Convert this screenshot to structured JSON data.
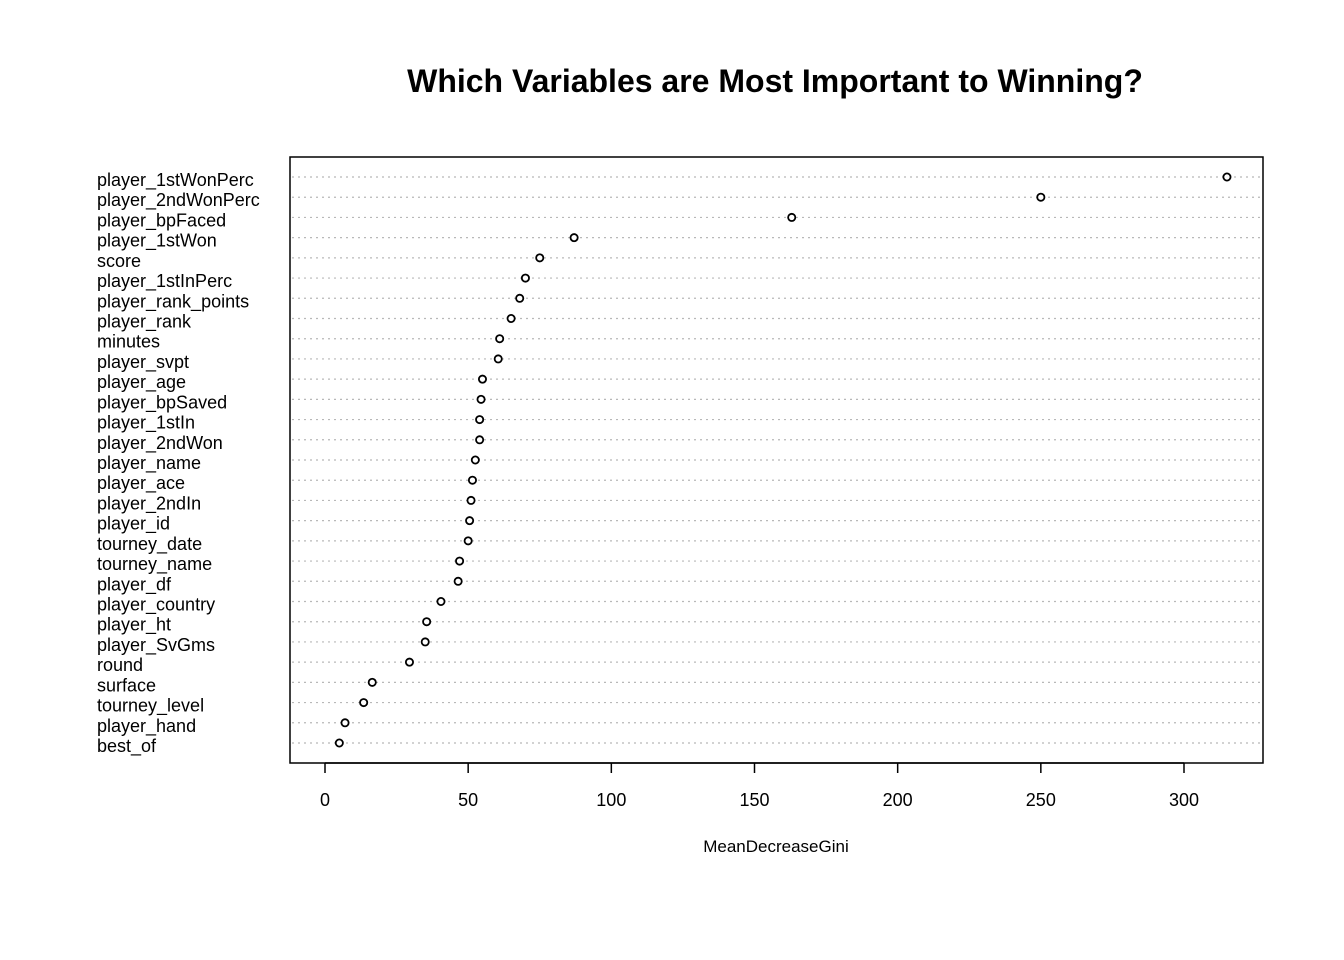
{
  "chart_data": {
    "type": "scatter",
    "title": "Which Variables are Most Important to Winning?",
    "xlabel": "MeanDecreaseGini",
    "ylabel": "",
    "xlim": [
      -13,
      327
    ],
    "xticks": [
      0,
      50,
      100,
      150,
      200,
      250,
      300
    ],
    "grid": "horizontal dotted",
    "categories": [
      "player_1stWonPerc",
      "player_2ndWonPerc",
      "player_bpFaced",
      "player_1stWon",
      "score",
      "player_1stInPerc",
      "player_rank_points",
      "player_rank",
      "minutes",
      "player_svpt",
      "player_age",
      "player_bpSaved",
      "player_1stIn",
      "player_2ndWon",
      "player_name",
      "player_ace",
      "player_2ndIn",
      "player_id",
      "tourney_date",
      "tourney_name",
      "player_df",
      "player_country",
      "player_ht",
      "player_SvGms",
      "round",
      "surface",
      "tourney_level",
      "player_hand",
      "best_of"
    ],
    "values": [
      315,
      250,
      163,
      87,
      75,
      70,
      68,
      65,
      61,
      60.5,
      55,
      54.5,
      54,
      54,
      52.5,
      51.5,
      51,
      50.5,
      50,
      47,
      46.5,
      40.5,
      35.5,
      35,
      29.5,
      16.5,
      13.5,
      7,
      5
    ]
  }
}
